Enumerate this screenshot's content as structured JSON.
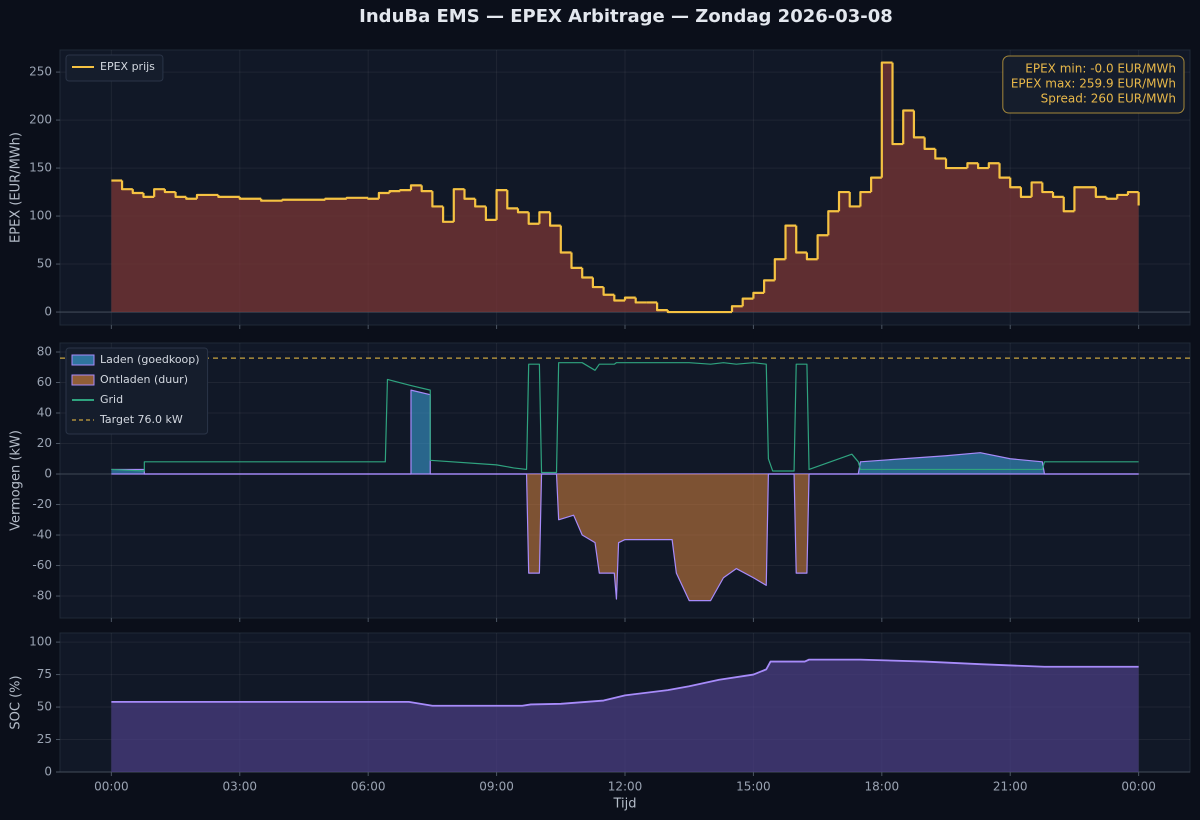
{
  "chart_data": [
    {
      "type": "line",
      "drawstyle": "steps-post",
      "title": "InduBa EMS  —  EPEX Arbitrage  —  Zondag 2026-03-08",
      "ylabel": "EPEX (EUR/MWh)",
      "x": [
        0,
        0.25,
        0.5,
        0.75,
        1,
        1.25,
        1.5,
        1.75,
        2,
        2.5,
        3,
        3.5,
        4,
        5,
        5.5,
        6,
        6.25,
        6.5,
        6.75,
        7,
        7.25,
        7.5,
        7.75,
        8,
        8.25,
        8.5,
        8.75,
        9,
        9.25,
        9.5,
        9.75,
        10,
        10.25,
        10.5,
        10.75,
        11,
        11.25,
        11.5,
        11.75,
        12,
        12.25,
        12.5,
        12.75,
        13,
        14.5,
        14.75,
        15,
        15.25,
        15.5,
        15.75,
        16,
        16.25,
        16.5,
        16.75,
        17,
        17.25,
        17.5,
        17.75,
        18,
        18.25,
        18.5,
        18.75,
        19,
        19.25,
        19.5,
        20,
        20.25,
        20.5,
        20.75,
        21,
        21.25,
        21.5,
        21.75,
        22,
        22.25,
        22.5,
        23,
        23.25,
        23.5,
        23.75,
        24
      ],
      "series": [
        {
          "name": "EPEX prijs",
          "color": "#f5c242",
          "fill": "#7a3535",
          "values": [
            137,
            128,
            124,
            120,
            128,
            125,
            120,
            118,
            122,
            120,
            118,
            116,
            117,
            118,
            119,
            118,
            124,
            126,
            127,
            132,
            126,
            110,
            94,
            128,
            118,
            110,
            96,
            127,
            108,
            104,
            92,
            104,
            90,
            62,
            46,
            36,
            26,
            18,
            12,
            15,
            10,
            10,
            2,
            0,
            6,
            14,
            20,
            33,
            55,
            90,
            62,
            55,
            80,
            105,
            125,
            110,
            125,
            140,
            259.9,
            175,
            210,
            182,
            170,
            160,
            150,
            155,
            150,
            155,
            140,
            130,
            120,
            135,
            125,
            120,
            105,
            130,
            120,
            118,
            122,
            125,
            111
          ]
        }
      ],
      "xlim": [
        -1.2,
        25.2
      ],
      "xticks": [
        0,
        3,
        6,
        9,
        12,
        15,
        18,
        21,
        24
      ],
      "ylim": [
        -13.5,
        273
      ],
      "yticks": [
        0,
        50,
        100,
        150,
        200,
        250
      ],
      "grid": true,
      "legend": "upper left",
      "annotation": {
        "corner": "upper right",
        "lines": [
          "EPEX min: -0.0 EUR/MWh",
          "EPEX max: 259.9 EUR/MWh",
          "Spread: 260 EUR/MWh"
        ]
      }
    },
    {
      "type": "area",
      "ylabel": "Vermogen (kW)",
      "x": [
        0,
        0.77,
        0.77,
        6.4,
        6.45,
        7.0,
        7.0,
        7.45,
        7.45,
        9.0,
        9.4,
        9.7,
        9.75,
        10.0,
        10.05,
        10.4,
        10.45,
        10.8,
        11.0,
        11.3,
        11.4,
        11.75,
        11.8,
        11.85,
        12.0,
        13.1,
        13.2,
        13.5,
        14.0,
        14.3,
        14.6,
        15.0,
        15.3,
        15.35,
        15.45,
        15.95,
        16.0,
        16.25,
        16.3,
        17.3,
        17.45,
        17.5,
        18.5,
        19.5,
        20.3,
        21.0,
        21.75,
        21.8,
        24
      ],
      "series": [
        {
          "name": "Laden (goedkoop)",
          "color": "#3b9bd0",
          "edgecolor": "#a78bfa",
          "values": [
            3,
            3,
            0,
            0,
            0,
            0,
            55,
            52,
            0,
            0,
            0,
            0,
            0,
            0,
            0,
            0,
            0,
            0,
            0,
            0,
            0,
            0,
            0,
            0,
            0,
            0,
            0,
            0,
            0,
            0,
            0,
            0,
            0,
            0,
            0,
            0,
            0,
            0,
            0,
            0,
            0,
            8,
            10,
            12,
            14,
            10,
            8,
            0,
            0
          ]
        },
        {
          "name": "Ontladen (duur)",
          "color": "#c67a3c",
          "edgecolor": "#a78bfa",
          "values": [
            0,
            0,
            0,
            0,
            0,
            0,
            0,
            0,
            0,
            0,
            0,
            0,
            -65,
            -65,
            0,
            0,
            -30,
            -27,
            -40,
            -45,
            -65,
            -65,
            -82,
            -45,
            -43,
            -43,
            -65,
            -83,
            -83,
            -68,
            -62,
            -68,
            -73,
            0,
            0,
            0,
            -65,
            -65,
            0,
            0,
            0,
            0,
            0,
            0,
            0,
            0,
            0,
            0,
            0
          ]
        },
        {
          "name": "Grid",
          "color": "#2fa37f",
          "values": [
            3,
            2,
            8,
            8,
            62,
            58,
            58,
            55,
            9,
            6,
            4,
            3,
            72,
            72,
            1,
            1,
            73,
            73,
            73,
            68,
            72,
            72,
            73,
            73,
            73,
            73,
            73,
            73,
            72,
            73,
            72,
            73,
            72,
            10,
            2,
            2,
            72,
            72,
            3,
            13,
            8,
            3,
            3,
            3,
            3,
            3,
            3,
            8,
            8
          ]
        }
      ],
      "hlines": [
        {
          "name": "Target 76.0 kW",
          "value": 76,
          "color": "#c9a43f"
        }
      ],
      "xlim": [
        -1.2,
        25.2
      ],
      "xticks": [
        0,
        3,
        6,
        9,
        12,
        15,
        18,
        21,
        24
      ],
      "ylim": [
        -94.4,
        85.9
      ],
      "yticks": [
        -80,
        -60,
        -40,
        -20,
        0,
        20,
        40,
        60,
        80
      ],
      "grid": true,
      "legend": "upper left"
    },
    {
      "type": "area",
      "ylabel": "SOC (%)",
      "xlabel": "Tijd",
      "x": [
        0,
        6.95,
        7.5,
        9.6,
        9.8,
        10.5,
        11.5,
        12,
        13,
        13.5,
        14.2,
        15,
        15.3,
        15.4,
        16.2,
        16.3,
        17.5,
        19,
        20.3,
        21.8,
        24
      ],
      "series": [
        {
          "color": "#a78bfa",
          "fill": "#4b3f86",
          "values": [
            54,
            54,
            51,
            51,
            52,
            52.5,
            55,
            59,
            63,
            66,
            71,
            75,
            79,
            85,
            85,
            86.5,
            86.5,
            85,
            83,
            81,
            81
          ]
        }
      ],
      "xlim": [
        -1.2,
        25.2
      ],
      "xticks": [
        {
          "value": 0,
          "label": "00:00"
        },
        {
          "value": 3,
          "label": "03:00"
        },
        {
          "value": 6,
          "label": "06:00"
        },
        {
          "value": 9,
          "label": "09:00"
        },
        {
          "value": 12,
          "label": "12:00"
        },
        {
          "value": 15,
          "label": "15:00"
        },
        {
          "value": 18,
          "label": "18:00"
        },
        {
          "value": 21,
          "label": "21:00"
        },
        {
          "value": 24,
          "label": "00:00"
        }
      ],
      "ylim": [
        0,
        107
      ],
      "yticks": [
        0,
        25,
        50,
        75,
        100
      ],
      "grid": true
    }
  ]
}
